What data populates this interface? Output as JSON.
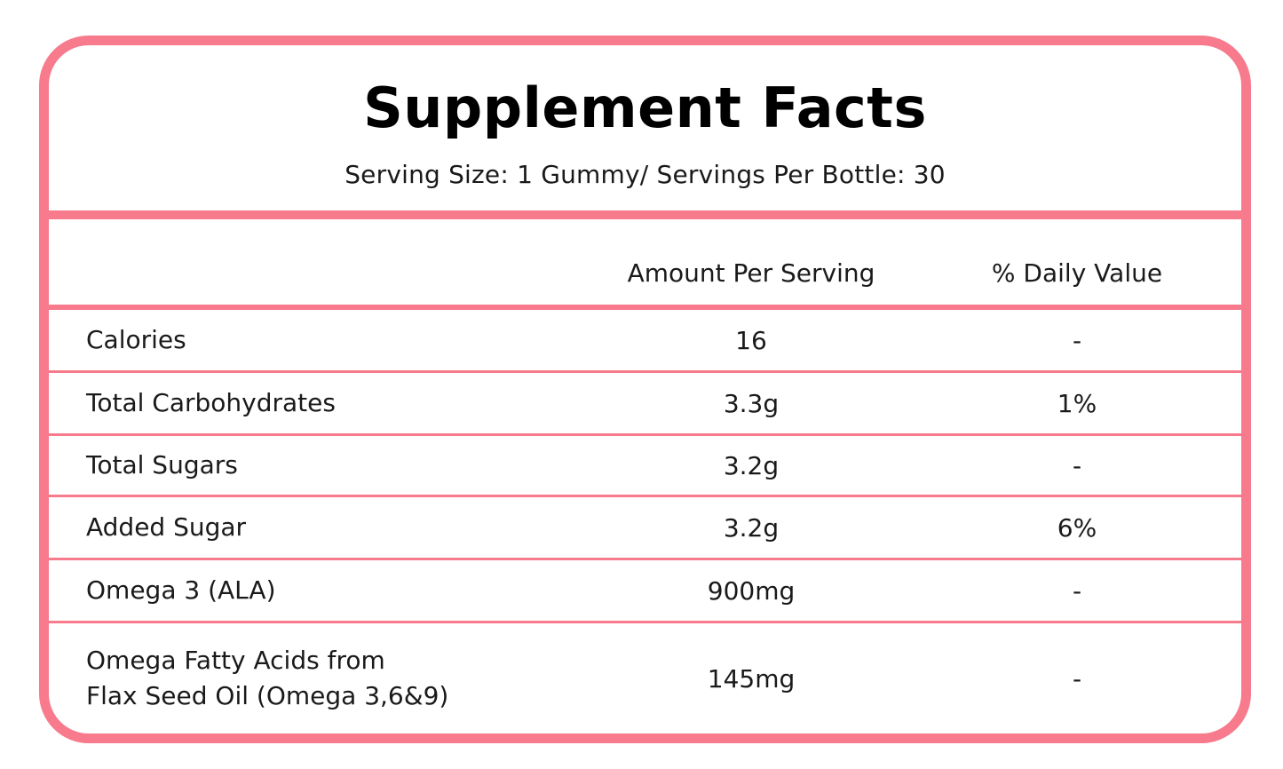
{
  "label": {
    "title": "Supplement Facts",
    "subtitle": "Serving Size: 1 Gummy/ Servings Per Bottle: 30",
    "columns": {
      "amount": "Amount Per Serving",
      "daily_value": "% Daily Value"
    },
    "rows": [
      {
        "name": "Calories",
        "amount": "16",
        "dv": "-"
      },
      {
        "name": "Total Carbohydrates",
        "amount": "3.3g",
        "dv": "1%"
      },
      {
        "name": "Total Sugars",
        "amount": "3.2g",
        "dv": "-"
      },
      {
        "name": "Added Sugar",
        "amount": "3.2g",
        "dv": "6%"
      },
      {
        "name": "Omega 3 (ALA)",
        "amount": "900mg",
        "dv": "-"
      },
      {
        "name_line1": "Omega Fatty Acids from",
        "name_line2": "Flax Seed Oil (Omega 3,6&9)",
        "amount": "145mg",
        "dv": "-"
      }
    ]
  },
  "colors": {
    "border": "#f77b8c",
    "text": "#1a1a1a",
    "title": "#000000",
    "background": "#ffffff"
  }
}
